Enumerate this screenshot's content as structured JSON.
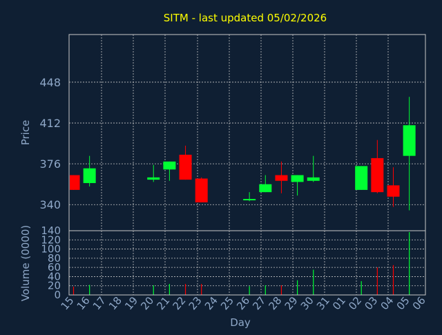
{
  "chart_data": {
    "title": "SITM - last updated 05/02/2026",
    "colors": {
      "background": "#0f1f33",
      "title": "#ffff00",
      "axis_text": "#8fa8c8",
      "grid": "#c8c8c8",
      "up": "#00ff33",
      "down": "#ff0000"
    },
    "panels": [
      {
        "type": "candlestick",
        "ylabel": "Price",
        "yticks": [
          340,
          376,
          412,
          448
        ],
        "ylim": [
          317,
          490
        ],
        "grid": true
      },
      {
        "type": "bar",
        "ylabel": "Volume (0000)",
        "yticks": [
          0,
          20,
          40,
          60,
          80,
          100,
          120,
          140
        ],
        "ylim": [
          0,
          140
        ],
        "grid": true
      }
    ],
    "xlabel": "Day",
    "x_tick_labels": [
      "15",
      "16",
      "17",
      "18",
      "19",
      "20",
      "21",
      "22",
      "23",
      "24",
      "25",
      "26",
      "27",
      "28",
      "29",
      "30",
      "31",
      "01",
      "02",
      "03",
      "04",
      "05",
      "06"
    ],
    "candles": [
      {
        "day": "15",
        "open": 366,
        "high": 366,
        "low": 353,
        "close": 353,
        "volume": 18
      },
      {
        "day": "16",
        "open": 359,
        "high": 383,
        "low": 356,
        "close": 372,
        "volume": 22
      },
      {
        "day": "20",
        "open": 362,
        "high": 375,
        "low": 360,
        "close": 364,
        "volume": 21
      },
      {
        "day": "21",
        "open": 371,
        "high": 378,
        "low": 361,
        "close": 378,
        "volume": 24
      },
      {
        "day": "22",
        "open": 384,
        "high": 392,
        "low": 362,
        "close": 362,
        "volume": 24
      },
      {
        "day": "23",
        "open": 363,
        "high": 364,
        "low": 342,
        "close": 342,
        "volume": 24
      },
      {
        "day": "26",
        "open": 344,
        "high": 351,
        "low": 343,
        "close": 345,
        "volume": 19
      },
      {
        "day": "27",
        "open": 351,
        "high": 366,
        "low": 351,
        "close": 358,
        "volume": 21
      },
      {
        "day": "28",
        "open": 366,
        "high": 378,
        "low": 350,
        "close": 361,
        "volume": 21
      },
      {
        "day": "29",
        "open": 360,
        "high": 366,
        "low": 348,
        "close": 366,
        "volume": 32
      },
      {
        "day": "30",
        "open": 361,
        "high": 383,
        "low": 360,
        "close": 364,
        "volume": 55
      },
      {
        "day": "02",
        "open": 353,
        "high": 374,
        "low": 353,
        "close": 374,
        "volume": 30
      },
      {
        "day": "03",
        "open": 381,
        "high": 397,
        "low": 350,
        "close": 351,
        "volume": 60
      },
      {
        "day": "04",
        "open": 357,
        "high": 373,
        "low": 338,
        "close": 347,
        "volume": 65
      },
      {
        "day": "05",
        "open": 383,
        "high": 435,
        "low": 335,
        "close": 410,
        "volume": 137
      }
    ]
  }
}
